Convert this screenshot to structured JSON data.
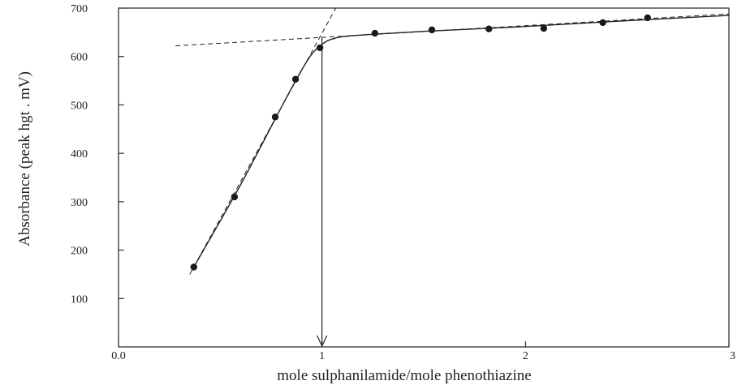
{
  "chart_data": {
    "type": "scatter",
    "title": "",
    "xlabel": "mole sulphanilamide/mole phenothiazine",
    "ylabel": "Absorbance (peak hgt . mV)",
    "xlim": [
      0,
      3
    ],
    "ylim": [
      0,
      700
    ],
    "x_ticks": [
      0,
      1,
      2,
      3
    ],
    "x_tick_labels": [
      "0.0",
      "1",
      "2",
      "3"
    ],
    "y_ticks": [
      100,
      200,
      300,
      400,
      500,
      600,
      700
    ],
    "y_tick_labels": [
      "100",
      "200",
      "300",
      "400",
      "500",
      "600",
      "700"
    ],
    "grid": false,
    "legend": "none",
    "series": [
      {
        "points": [
          {
            "x": 0.37,
            "y": 165
          },
          {
            "x": 0.57,
            "y": 310
          },
          {
            "x": 0.77,
            "y": 475
          },
          {
            "x": 0.87,
            "y": 553
          },
          {
            "x": 0.99,
            "y": 618
          },
          {
            "x": 1.26,
            "y": 648
          },
          {
            "x": 1.54,
            "y": 655
          },
          {
            "x": 1.82,
            "y": 657
          },
          {
            "x": 2.09,
            "y": 658
          },
          {
            "x": 2.38,
            "y": 670
          },
          {
            "x": 2.6,
            "y": 680
          }
        ]
      }
    ],
    "fit_curve": [
      {
        "x": 0.37,
        "y": 165
      },
      {
        "x": 0.6,
        "y": 335
      },
      {
        "x": 0.8,
        "y": 495
      },
      {
        "x": 0.9,
        "y": 572
      },
      {
        "x": 0.95,
        "y": 605
      },
      {
        "x": 1.0,
        "y": 625
      },
      {
        "x": 1.05,
        "y": 636
      },
      {
        "x": 1.15,
        "y": 643
      },
      {
        "x": 1.5,
        "y": 652
      },
      {
        "x": 2.0,
        "y": 662
      },
      {
        "x": 2.5,
        "y": 674
      },
      {
        "x": 3.0,
        "y": 685
      }
    ],
    "extrapolations": [
      {
        "style": "dashed",
        "from": {
          "x": 0.35,
          "y": 150
        },
        "to": {
          "x": 1.12,
          "y": 740
        }
      },
      {
        "style": "dashed",
        "from": {
          "x": 0.28,
          "y": 622
        },
        "to": {
          "x": 3.0,
          "y": 688
        }
      }
    ],
    "equivalence_marker": {
      "x": 1.0,
      "from_y": 640,
      "to_y": 0
    },
    "colors": {
      "ink": "#222222",
      "background": "#ffffff"
    }
  }
}
